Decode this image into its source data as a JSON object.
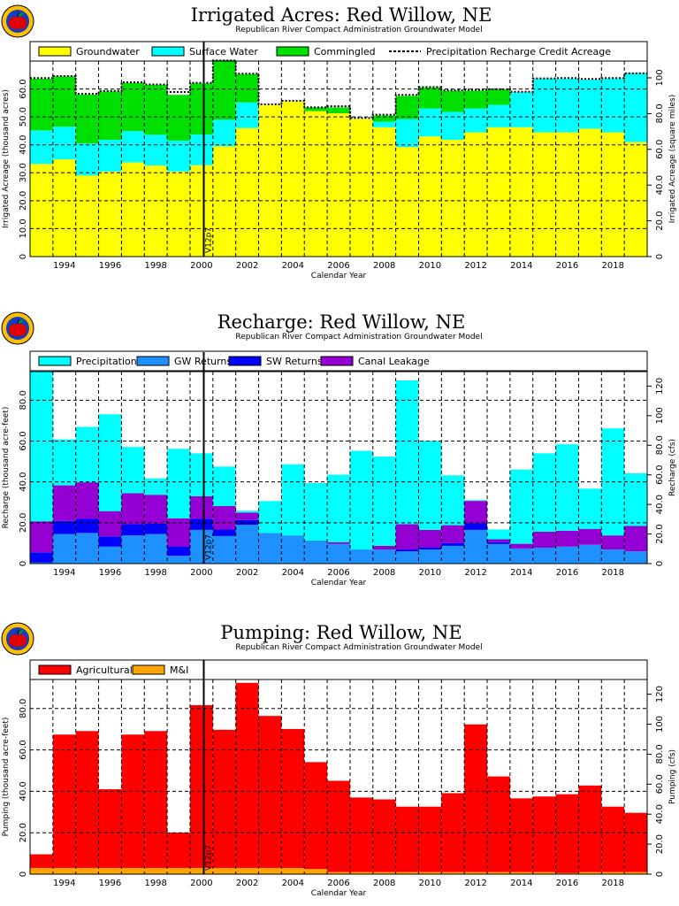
{
  "colors": {
    "groundwater": "#ffff00",
    "surface_water": "#00ffff",
    "commingled": "#00e000",
    "precipitation": "#00ffff",
    "gw_returns": "#1e90ff",
    "sw_returns": "#0000ff",
    "canal_leakage": "#9400d3",
    "agricultural": "#ff0000",
    "mi": "#ffa500"
  },
  "icon": "apple-logo-icon",
  "chart_data": [
    {
      "type": "area",
      "title": "Irrigated Acres: Red Willow, NE",
      "subtitle": "Republican River Compact Administration Groundwater Model",
      "xlabel": "Calendar Year",
      "ylabel": "Irrigated Acreage (thousand acres)",
      "ylabel_right": "Irrigated Acreage (square miles)",
      "xlim": [
        1993,
        2020
      ],
      "ylim": [
        0,
        70
      ],
      "right_ylim": [
        0,
        109.4
      ],
      "x_ticks": [
        "1994",
        "1996",
        "1998",
        "2000",
        "2002",
        "2004",
        "2006",
        "2008",
        "2010",
        "2012",
        "2014",
        "2016",
        "2018"
      ],
      "y_ticks": [
        "0",
        "10.0",
        "20.0",
        "30.0",
        "40.0",
        "50.0",
        "60.0"
      ],
      "right_ticks": [
        "0",
        "20.0",
        "40.0",
        "60.0",
        "80.0",
        "100"
      ],
      "grid": true,
      "legend_position": "top",
      "legend": [
        "Groundwater",
        "Surface Water",
        "Commingled",
        "Precipitation Recharge Credit Acreage"
      ],
      "marker_label": "V12p7",
      "marker_x": 2000.6,
      "categories": [
        1993,
        1994,
        1995,
        1996,
        1997,
        1998,
        1999,
        2000,
        2001,
        2002,
        2003,
        2004,
        2005,
        2006,
        2007,
        2008,
        2009,
        2010,
        2011,
        2012,
        2013,
        2014,
        2015,
        2016,
        2017,
        2018,
        2019
      ],
      "series": [
        {
          "name": "Groundwater",
          "values": [
            33.2,
            34.8,
            29.0,
            30.5,
            33.7,
            32.6,
            30.5,
            32.7,
            39.5,
            46.0,
            54.3,
            55.5,
            52.1,
            51.3,
            49.2,
            46.3,
            39.2,
            43.0,
            41.8,
            44.5,
            46.3,
            46.3,
            44.5,
            44.5,
            45.8,
            44.5,
            41.0
          ]
        },
        {
          "name": "Surface Water",
          "values": [
            12.0,
            11.7,
            11.5,
            11.3,
            11.2,
            11.0,
            11.0,
            11.0,
            9.5,
            9.2,
            0,
            0,
            0,
            0,
            0,
            2.0,
            10.0,
            10.0,
            10.0,
            8.5,
            8.0,
            12.5,
            19.2,
            19.2,
            17.5,
            19.2,
            24.7
          ]
        },
        {
          "name": "Commingled",
          "values": [
            18.5,
            18.0,
            17.5,
            17.3,
            17.3,
            17.8,
            16.4,
            18.3,
            21.3,
            10.1,
            0,
            0,
            1.3,
            2.1,
            0,
            2.2,
            8.3,
            7.5,
            7.5,
            6.4,
            5.5,
            0,
            0,
            0,
            0,
            0,
            0
          ]
        },
        {
          "name": "Precipitation Recharge Credit Acreage",
          "values": [
            63.9,
            64.6,
            58.3,
            59.3,
            62.4,
            61.6,
            58.9,
            62.2,
            70.2,
            65.5,
            54.5,
            55.8,
            53.4,
            53.8,
            49.6,
            50.8,
            57.9,
            60.7,
            59.5,
            59.7,
            59.9,
            59.0,
            63.8,
            63.9,
            63.6,
            63.9,
            65.6
          ]
        }
      ]
    },
    {
      "type": "bar",
      "title": "Recharge: Red Willow, NE",
      "subtitle": "Republican River Compact Administration Groundwater Model",
      "xlabel": "Calendar Year",
      "ylabel": "Recharge (thousand acre-feet)",
      "ylabel_right": "Recharge (cfs)",
      "xlim": [
        1993,
        2020
      ],
      "ylim": [
        0,
        94
      ],
      "right_ylim": [
        0,
        129.8
      ],
      "x_ticks": [
        "1994",
        "1996",
        "1998",
        "2000",
        "2002",
        "2004",
        "2006",
        "2008",
        "2010",
        "2012",
        "2014",
        "2016",
        "2018"
      ],
      "y_ticks": [
        "0",
        "20.0",
        "40.0",
        "60.0",
        "80.0"
      ],
      "right_ticks": [
        "0",
        "20.0",
        "40.0",
        "60.0",
        "80.0",
        "100",
        "120"
      ],
      "grid": true,
      "legend_position": "top",
      "legend": [
        "Precipitation",
        "GW Returns",
        "SW Returns",
        "Canal Leakage"
      ],
      "marker_label": "V12p7",
      "marker_x": 2000.6,
      "categories": [
        1993,
        1994,
        1995,
        1996,
        1997,
        1998,
        1999,
        2000,
        2001,
        2002,
        2003,
        2004,
        2005,
        2006,
        2007,
        2008,
        2009,
        2010,
        2011,
        2012,
        2013,
        2014,
        2015,
        2016,
        2017,
        2018,
        2019
      ],
      "series": [
        {
          "name": "GW Returns",
          "values": [
            0.5,
            14.5,
            15.0,
            8.3,
            13.8,
            14.5,
            3.8,
            16.5,
            13.5,
            19.0,
            15.0,
            13.8,
            11.3,
            9.6,
            6.9,
            6.9,
            6.0,
            6.9,
            8.7,
            16.5,
            9.6,
            7.4,
            7.8,
            8.3,
            9.2,
            6.9,
            6.0
          ]
        },
        {
          "name": "SW Returns",
          "values": [
            5.0,
            6.4,
            6.9,
            5.0,
            5.5,
            5.0,
            4.6,
            5.5,
            3.2,
            2.3,
            0,
            0,
            0,
            0,
            0,
            0,
            0.9,
            0.9,
            1.4,
            3.2,
            0.9,
            0,
            0,
            0,
            0,
            0,
            0
          ]
        },
        {
          "name": "Canal Leakage",
          "values": [
            15.2,
            17.4,
            17.9,
            12.4,
            15.2,
            14.2,
            13.8,
            11.0,
            11.5,
            3.7,
            0,
            0,
            0,
            0.9,
            0,
            1.8,
            12.4,
            8.7,
            8.7,
            11.0,
            1.4,
            2.3,
            7.8,
            7.8,
            7.8,
            6.9,
            12.4
          ]
        },
        {
          "name": "Precipitation",
          "values": [
            73.6,
            22.5,
            27.1,
            47.4,
            22.6,
            8.0,
            34.0,
            21.0,
            19.3,
            0.9,
            15.6,
            34.8,
            28.1,
            33.0,
            48.3,
            43.7,
            70.4,
            43.7,
            24.4,
            0.4,
            4.8,
            36.3,
            38.4,
            42.3,
            19.7,
            52.4,
            25.8
          ]
        }
      ]
    },
    {
      "type": "bar",
      "title": "Pumping: Red Willow, NE",
      "subtitle": "Republican River Compact Administration Groundwater Model",
      "xlabel": "Calendar Year",
      "ylabel": "Pumping (thousand acre-feet)",
      "ylabel_right": "Pumping (cfs)",
      "xlim": [
        1993,
        2020
      ],
      "ylim": [
        0,
        94
      ],
      "right_ylim": [
        0,
        129.8
      ],
      "x_ticks": [
        "1994",
        "1996",
        "1998",
        "2000",
        "2002",
        "2004",
        "2006",
        "2008",
        "2010",
        "2012",
        "2014",
        "2016",
        "2018"
      ],
      "y_ticks": [
        "0",
        "20.0",
        "40.0",
        "60.0",
        "80.0"
      ],
      "right_ticks": [
        "0",
        "20.0",
        "40.0",
        "60.0",
        "80.0",
        "100",
        "120"
      ],
      "grid": true,
      "legend_position": "top",
      "legend": [
        "Agricultural",
        "M&I"
      ],
      "marker_label": "V12p7",
      "marker_x": 2000.6,
      "categories": [
        1993,
        1994,
        1995,
        1996,
        1997,
        1998,
        1999,
        2000,
        2001,
        2002,
        2003,
        2004,
        2005,
        2006,
        2007,
        2008,
        2009,
        2010,
        2011,
        2012,
        2013,
        2014,
        2015,
        2016,
        2017,
        2018,
        2019
      ],
      "series": [
        {
          "name": "M&I",
          "values": [
            3.0,
            3.0,
            3.0,
            3.0,
            3.0,
            3.0,
            3.0,
            3.0,
            3.0,
            3.0,
            3.0,
            3.0,
            2.5,
            1.0,
            1.0,
            1.0,
            1.0,
            1.0,
            1.0,
            1.0,
            1.0,
            1.0,
            1.0,
            0.5,
            1.0,
            1.0,
            1.0
          ]
        },
        {
          "name": "Agricultural",
          "values": [
            6.6,
            64.4,
            66.1,
            38.0,
            64.4,
            66.1,
            17.1,
            78.6,
            66.7,
            89.4,
            73.4,
            67.1,
            51.6,
            44.1,
            36.0,
            35.1,
            31.6,
            31.6,
            38.1,
            71.3,
            46.2,
            35.6,
            36.5,
            38.1,
            41.8,
            31.6,
            28.6
          ]
        }
      ]
    }
  ]
}
